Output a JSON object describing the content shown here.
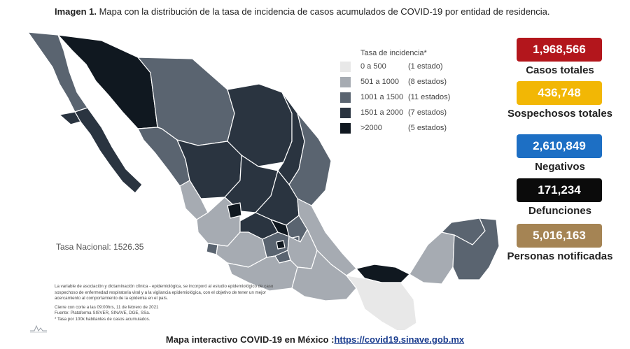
{
  "title": {
    "prefix": "Imagen 1.",
    "text": " Mapa con la distribución de la tasa de incidencia de casos acumulados de COVID-19 por entidad de residencia."
  },
  "legend": {
    "title": "Tasa de incidencia*",
    "items": [
      {
        "range": "0 a 500",
        "count": "(1 estado)",
        "color": "#e8e8e8"
      },
      {
        "range": "501 a 1000",
        "count": "(8 estados)",
        "color": "#a6abb2"
      },
      {
        "range": "1001 a 1500",
        "count": "(11 estados)",
        "color": "#5a6470"
      },
      {
        "range": "1501 a 2000",
        "count": "(7 estados)",
        "color": "#2a3440"
      },
      {
        "range": ">2000",
        "count": "(5 estados)",
        "color": "#101820"
      }
    ]
  },
  "national_rate": "Tasa Nacional: 1526.35",
  "notes": {
    "paragraph1": "La variable de asociación y dictaminación clínica - epidemiológica, se incorporó al estudio epidemiológico de caso sospechoso de enfermedad respiratoria viral y a la vigilancia epidemiológica, con el objetivo de tener un mejor acercamiento al comportamiento de la epidemia en el país.",
    "cutoff": "Cierre con corte a las 09:00hrs, 11 de febrero de 2021",
    "source": "Fuente: Plataforma SISVER, SINAVE, DGE, SSa.",
    "footnote": "* Tasa por 100k habitantes de casos acumulados."
  },
  "stats": [
    {
      "value": "1,968,566",
      "label": "Casos totales",
      "color": "#b3161c"
    },
    {
      "value": "436,748",
      "label": "Sospechosos totales",
      "color": "#f2b705"
    },
    {
      "value": "2,610,849",
      "label": "Negativos",
      "color": "#1d6fc4"
    },
    {
      "value": "171,234",
      "label": "Defunciones",
      "color": "#0b0b0b"
    },
    {
      "value": "5,016,163",
      "label": "Personas notificadas",
      "color": "#a58454"
    }
  ],
  "footer": {
    "text": "Mapa interactivo COVID-19 en México :",
    "link": "https://covid19.sinave.gob.mx"
  }
}
